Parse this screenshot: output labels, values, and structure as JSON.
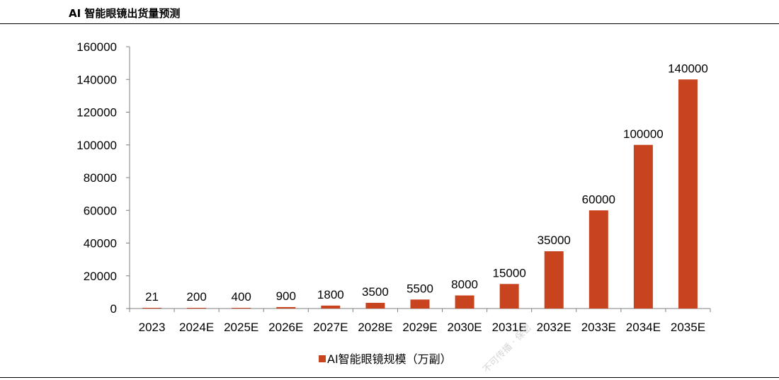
{
  "title": "AI 智能眼镜出货量预测",
  "watermark": "不可传播 · 保密",
  "chart_data": {
    "type": "bar",
    "title": "",
    "categories": [
      "2023",
      "2024E",
      "2025E",
      "2026E",
      "2027E",
      "2028E",
      "2029E",
      "2030E",
      "2031E",
      "2032E",
      "2033E",
      "2034E",
      "2035E"
    ],
    "series": [
      {
        "name": "AI智能眼镜规模（万副）",
        "values": [
          21,
          200,
          400,
          900,
          1800,
          3500,
          5500,
          8000,
          15000,
          35000,
          60000,
          100000,
          140000
        ],
        "color": "#C8441F"
      }
    ],
    "data_labels": [
      "21",
      "200",
      "400",
      "900",
      "1800",
      "3500",
      "5500",
      "8000",
      "15000",
      "35000",
      "60000",
      "100000",
      "140000"
    ],
    "yticks": [
      "0",
      "20000",
      "40000",
      "60000",
      "80000",
      "100000",
      "120000",
      "140000",
      "160000"
    ],
    "ylim": [
      0,
      160000
    ],
    "xlabel": "",
    "ylabel": "",
    "grid": false,
    "legend_position": "bottom"
  }
}
